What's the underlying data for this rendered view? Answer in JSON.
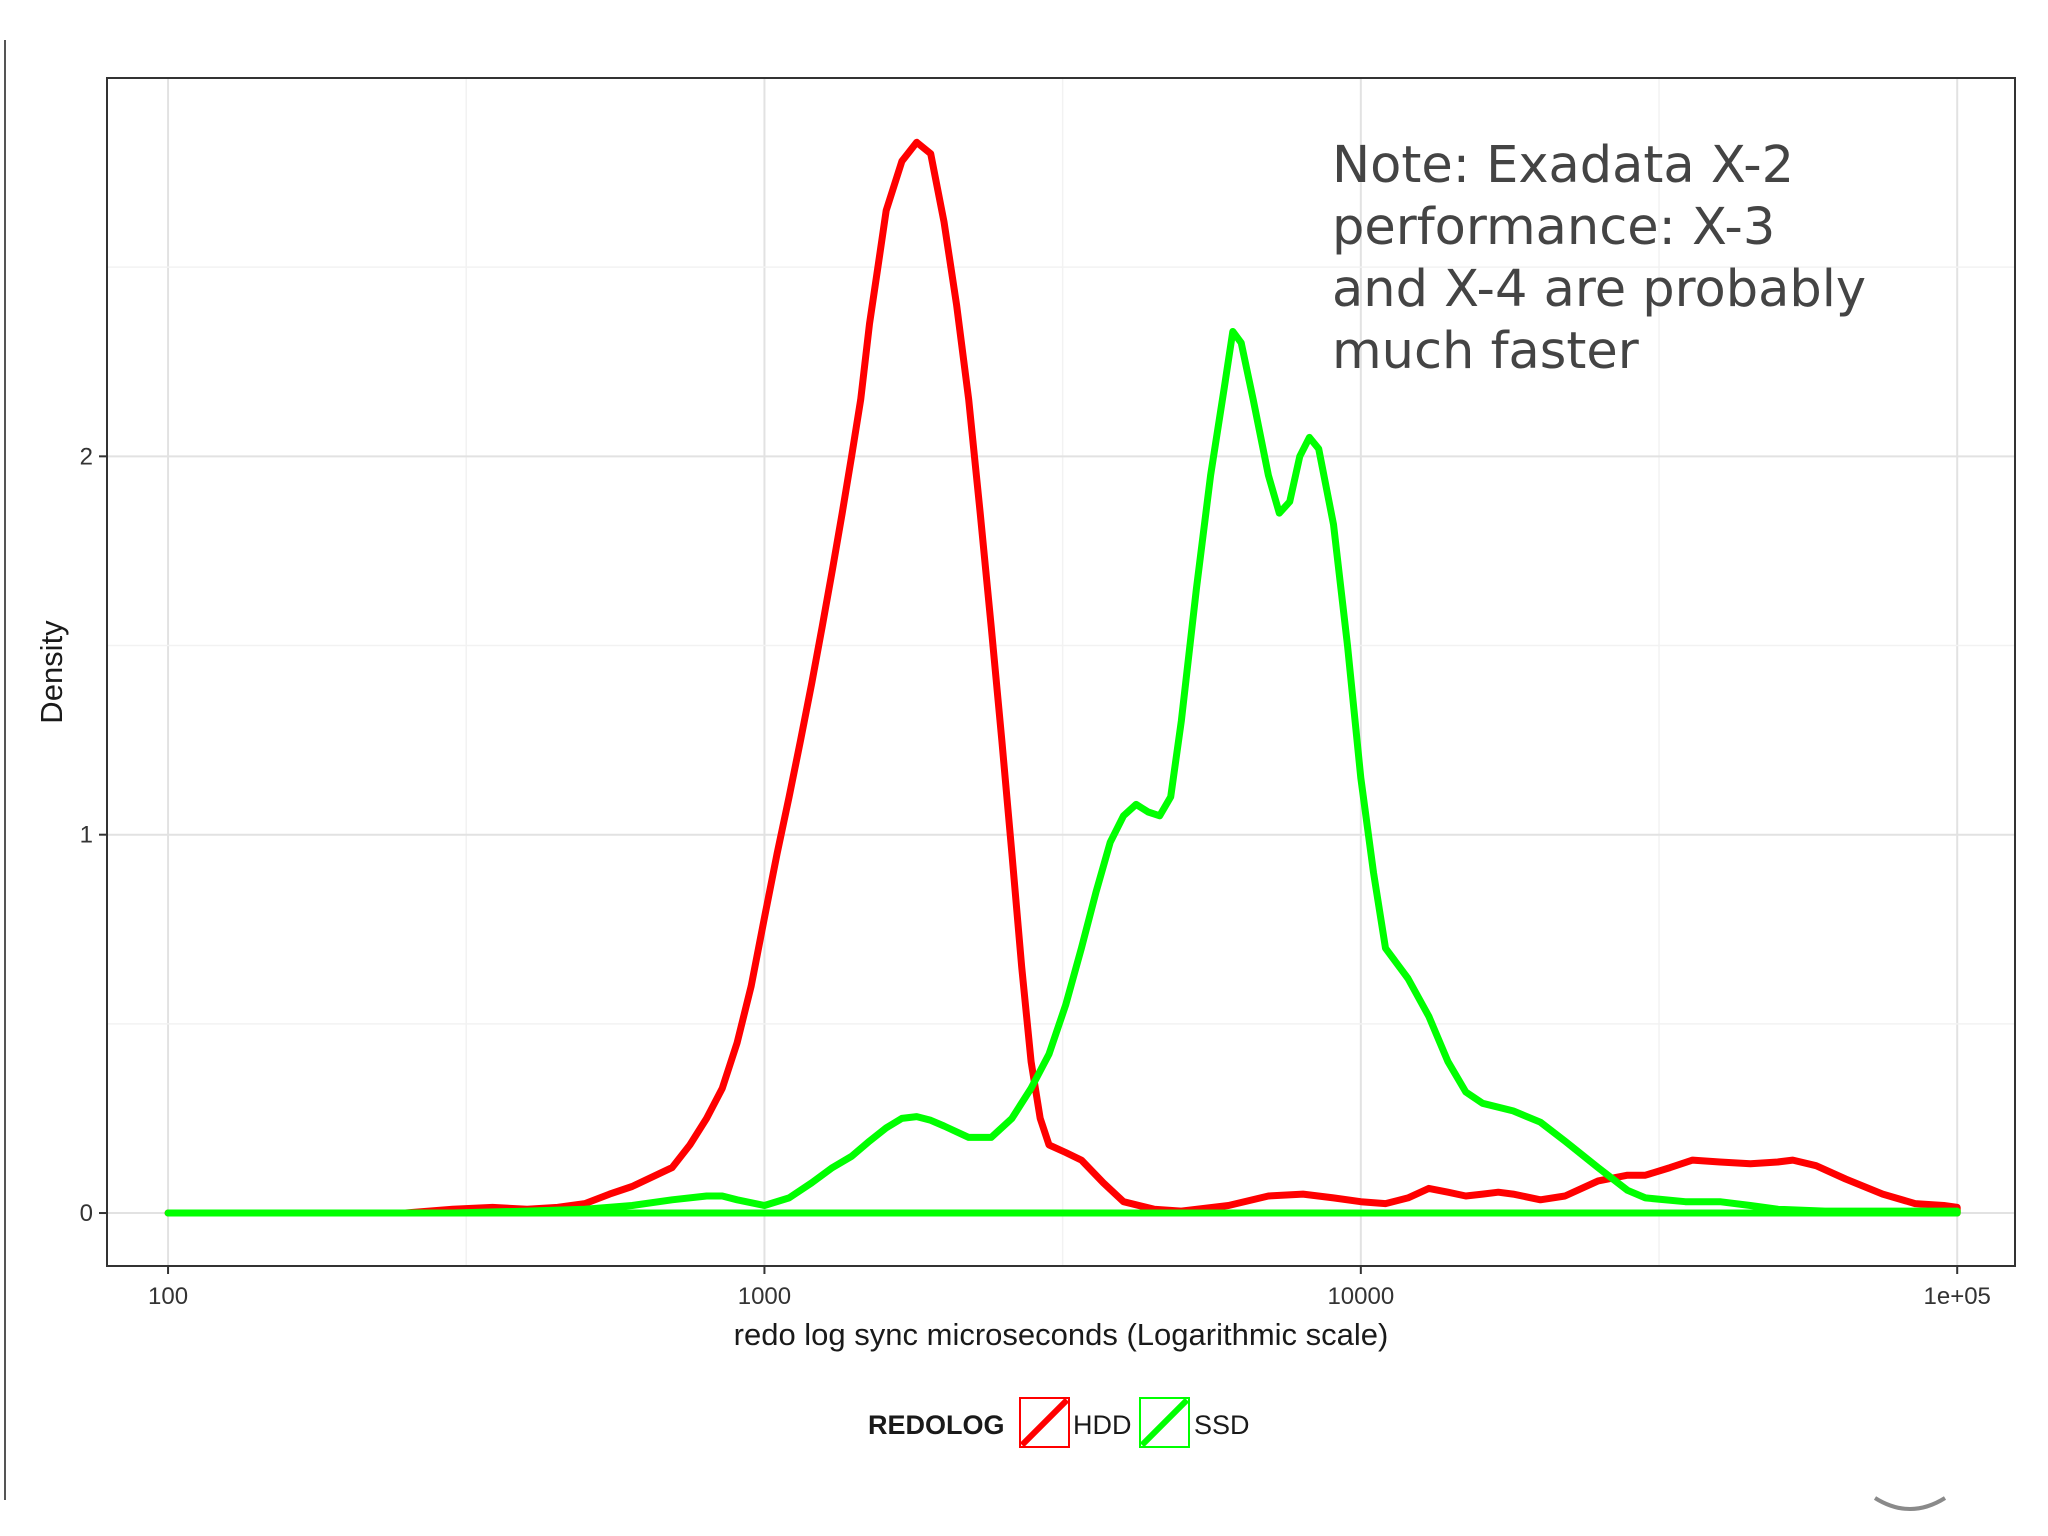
{
  "chart_data": {
    "type": "line",
    "title": "",
    "xlabel": "redo log sync microseconds (Logarithmic scale)",
    "ylabel": "Density",
    "x_scale": "log10",
    "xlim": [
      79,
      125000
    ],
    "ylim": [
      -0.14,
      3.0
    ],
    "x_ticks": [
      {
        "value": 100,
        "label": "100"
      },
      {
        "value": 1000,
        "label": "1000"
      },
      {
        "value": 10000,
        "label": "10000"
      },
      {
        "value": 100000,
        "label": "1e+05"
      }
    ],
    "y_ticks": [
      {
        "value": 0,
        "label": "0"
      },
      {
        "value": 1,
        "label": "1"
      },
      {
        "value": 2,
        "label": "2"
      }
    ],
    "grid": true,
    "legend": {
      "title": "REDOLOG",
      "position": "bottom"
    },
    "annotation": {
      "lines": [
        "Note: Exadata X-2",
        "performance:  X-3",
        "and X-4 are probably",
        "much faster"
      ]
    },
    "series": [
      {
        "name": "HDD",
        "color": "#ff0000",
        "points": [
          [
            100,
            0
          ],
          [
            250,
            0
          ],
          [
            300,
            0.01
          ],
          [
            350,
            0.015
          ],
          [
            400,
            0.01
          ],
          [
            450,
            0.015
          ],
          [
            500,
            0.025
          ],
          [
            550,
            0.05
          ],
          [
            600,
            0.07
          ],
          [
            700,
            0.12
          ],
          [
            750,
            0.18
          ],
          [
            800,
            0.25
          ],
          [
            850,
            0.33
          ],
          [
            900,
            0.45
          ],
          [
            950,
            0.6
          ],
          [
            1000,
            0.78
          ],
          [
            1050,
            0.95
          ],
          [
            1100,
            1.1
          ],
          [
            1150,
            1.25
          ],
          [
            1200,
            1.4
          ],
          [
            1250,
            1.55
          ],
          [
            1300,
            1.7
          ],
          [
            1350,
            1.85
          ],
          [
            1400,
            2.0
          ],
          [
            1450,
            2.15
          ],
          [
            1500,
            2.35
          ],
          [
            1550,
            2.5
          ],
          [
            1600,
            2.65
          ],
          [
            1700,
            2.78
          ],
          [
            1800,
            2.83
          ],
          [
            1900,
            2.8
          ],
          [
            2000,
            2.62
          ],
          [
            2100,
            2.4
          ],
          [
            2200,
            2.15
          ],
          [
            2300,
            1.85
          ],
          [
            2400,
            1.55
          ],
          [
            2500,
            1.25
          ],
          [
            2600,
            0.95
          ],
          [
            2700,
            0.65
          ],
          [
            2800,
            0.4
          ],
          [
            2900,
            0.25
          ],
          [
            3000,
            0.18
          ],
          [
            3200,
            0.16
          ],
          [
            3400,
            0.14
          ],
          [
            3700,
            0.08
          ],
          [
            4000,
            0.03
          ],
          [
            4500,
            0.01
          ],
          [
            5000,
            0.005
          ],
          [
            6000,
            0.02
          ],
          [
            7000,
            0.045
          ],
          [
            8000,
            0.05
          ],
          [
            9000,
            0.04
          ],
          [
            10000,
            0.03
          ],
          [
            11000,
            0.025
          ],
          [
            12000,
            0.04
          ],
          [
            13000,
            0.065
          ],
          [
            14000,
            0.055
          ],
          [
            15000,
            0.045
          ],
          [
            16000,
            0.05
          ],
          [
            17000,
            0.055
          ],
          [
            18000,
            0.05
          ],
          [
            20000,
            0.035
          ],
          [
            22000,
            0.045
          ],
          [
            25000,
            0.085
          ],
          [
            28000,
            0.1
          ],
          [
            30000,
            0.1
          ],
          [
            33000,
            0.12
          ],
          [
            36000,
            0.14
          ],
          [
            40000,
            0.135
          ],
          [
            45000,
            0.13
          ],
          [
            50000,
            0.135
          ],
          [
            53000,
            0.14
          ],
          [
            58000,
            0.125
          ],
          [
            65000,
            0.09
          ],
          [
            75000,
            0.05
          ],
          [
            85000,
            0.025
          ],
          [
            95000,
            0.02
          ],
          [
            100000,
            0.015
          ]
        ]
      },
      {
        "name": "SSD",
        "color": "#00ff00",
        "points": [
          [
            100,
            0
          ],
          [
            300,
            0
          ],
          [
            400,
            0.005
          ],
          [
            500,
            0.01
          ],
          [
            600,
            0.02
          ],
          [
            700,
            0.035
          ],
          [
            800,
            0.045
          ],
          [
            850,
            0.045
          ],
          [
            900,
            0.035
          ],
          [
            1000,
            0.02
          ],
          [
            1100,
            0.04
          ],
          [
            1200,
            0.08
          ],
          [
            1300,
            0.12
          ],
          [
            1400,
            0.15
          ],
          [
            1500,
            0.19
          ],
          [
            1600,
            0.225
          ],
          [
            1700,
            0.25
          ],
          [
            1800,
            0.255
          ],
          [
            1900,
            0.245
          ],
          [
            2000,
            0.23
          ],
          [
            2200,
            0.2
          ],
          [
            2400,
            0.2
          ],
          [
            2600,
            0.25
          ],
          [
            2800,
            0.33
          ],
          [
            3000,
            0.42
          ],
          [
            3200,
            0.55
          ],
          [
            3400,
            0.7
          ],
          [
            3600,
            0.85
          ],
          [
            3800,
            0.98
          ],
          [
            4000,
            1.05
          ],
          [
            4200,
            1.08
          ],
          [
            4400,
            1.06
          ],
          [
            4600,
            1.05
          ],
          [
            4800,
            1.1
          ],
          [
            5000,
            1.3
          ],
          [
            5300,
            1.65
          ],
          [
            5600,
            1.95
          ],
          [
            5900,
            2.18
          ],
          [
            6100,
            2.33
          ],
          [
            6300,
            2.3
          ],
          [
            6600,
            2.15
          ],
          [
            7000,
            1.95
          ],
          [
            7300,
            1.85
          ],
          [
            7600,
            1.88
          ],
          [
            7900,
            2.0
          ],
          [
            8200,
            2.05
          ],
          [
            8500,
            2.02
          ],
          [
            9000,
            1.82
          ],
          [
            9500,
            1.5
          ],
          [
            10000,
            1.15
          ],
          [
            10500,
            0.9
          ],
          [
            11000,
            0.7
          ],
          [
            12000,
            0.62
          ],
          [
            13000,
            0.52
          ],
          [
            14000,
            0.4
          ],
          [
            15000,
            0.32
          ],
          [
            16000,
            0.29
          ],
          [
            18000,
            0.27
          ],
          [
            20000,
            0.24
          ],
          [
            22000,
            0.19
          ],
          [
            25000,
            0.12
          ],
          [
            28000,
            0.06
          ],
          [
            30000,
            0.04
          ],
          [
            35000,
            0.03
          ],
          [
            40000,
            0.03
          ],
          [
            45000,
            0.02
          ],
          [
            50000,
            0.01
          ],
          [
            60000,
            0.005
          ],
          [
            100000,
            0.005
          ]
        ]
      }
    ]
  }
}
